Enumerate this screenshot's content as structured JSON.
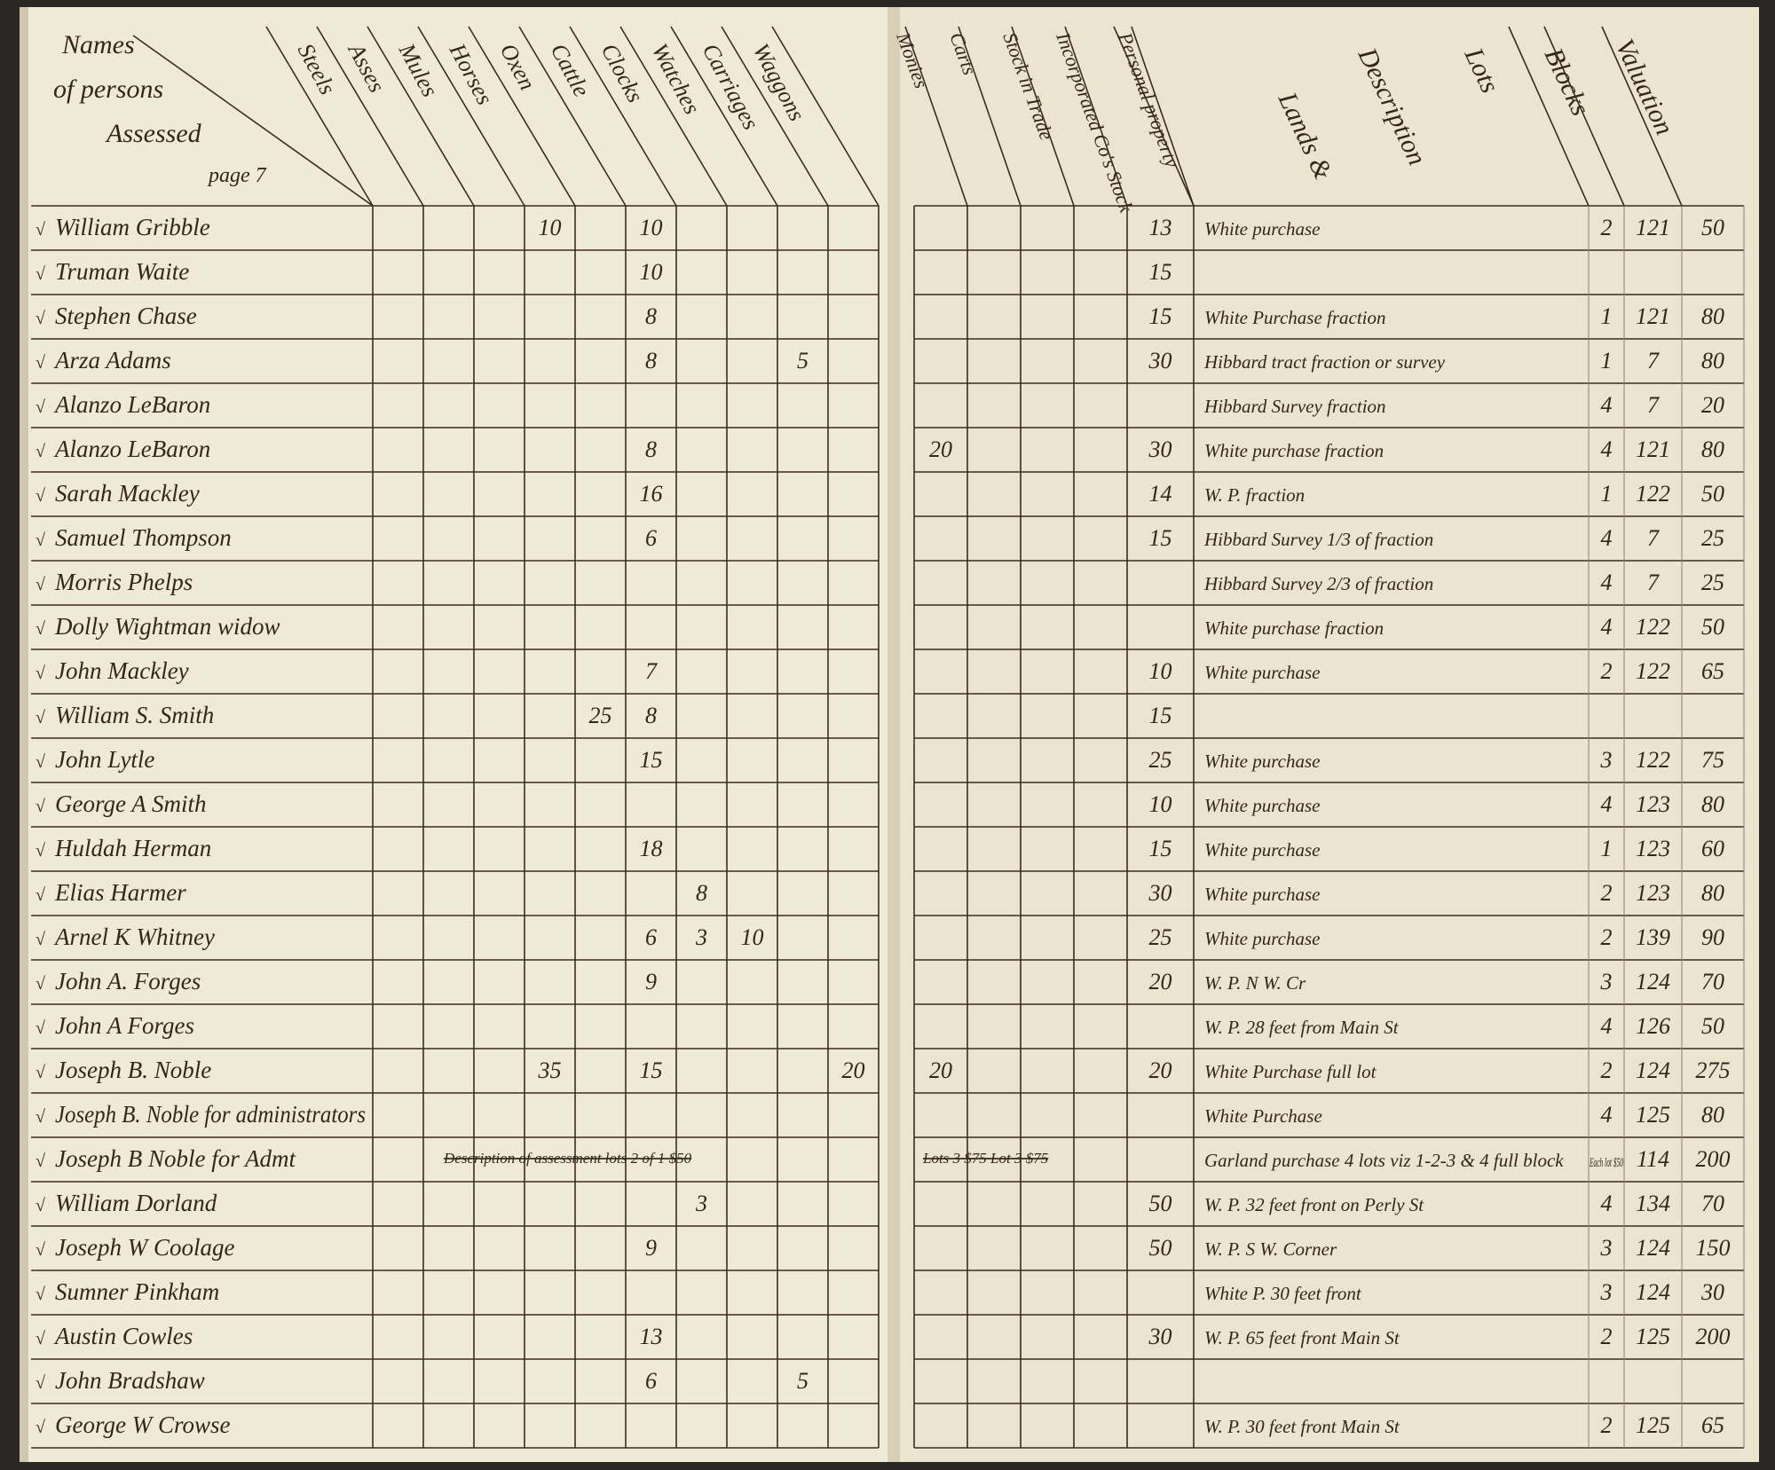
{
  "ledger": {
    "check_mark": "√",
    "names_header": [
      "Names",
      "of persons",
      "Assessed",
      "page 7"
    ],
    "left_columns": [
      "Steels",
      "Asses",
      "Mules",
      "Horses",
      "Oxen",
      "Cattle",
      "Clocks",
      "Watches",
      "Carriages",
      "Waggons"
    ],
    "right_columns": [
      "Monies",
      "Carts",
      "Stock in Trade",
      "Incorporated Co's Stock",
      "Personal property"
    ],
    "land_columns": [
      "Lands &",
      "Description",
      "Lots",
      "Blocks",
      "Valuation"
    ],
    "rows": [
      {
        "name": "William Gribble",
        "left": [
          null,
          null,
          null,
          10,
          null,
          10,
          null,
          null,
          null,
          null
        ],
        "right": [
          null,
          null,
          null,
          null,
          13
        ],
        "description": "White purchase",
        "lot": 2,
        "block": 121,
        "valuation": 50
      },
      {
        "name": "Truman Waite",
        "left": [
          null,
          null,
          null,
          null,
          null,
          10,
          null,
          null,
          null,
          null
        ],
        "right": [
          null,
          null,
          null,
          null,
          15
        ],
        "description": null,
        "lot": null,
        "block": null,
        "valuation": null
      },
      {
        "name": "Stephen Chase",
        "left": [
          null,
          null,
          null,
          null,
          null,
          8,
          null,
          null,
          null,
          null
        ],
        "right": [
          null,
          null,
          null,
          null,
          15
        ],
        "description": "White Purchase fraction",
        "lot": 1,
        "block": 121,
        "valuation": 80
      },
      {
        "name": "Arza Adams",
        "left": [
          null,
          null,
          null,
          null,
          null,
          8,
          null,
          null,
          5,
          null
        ],
        "right": [
          null,
          null,
          null,
          null,
          30
        ],
        "description": "Hibbard tract fraction or survey",
        "lot": 1,
        "block": 7,
        "valuation": 80
      },
      {
        "name": "Alanzo LeBaron",
        "left": [
          null,
          null,
          null,
          null,
          null,
          null,
          null,
          null,
          null,
          null
        ],
        "right": [
          null,
          null,
          null,
          null,
          null
        ],
        "description": "Hibbard Survey fraction",
        "lot": 4,
        "block": 7,
        "valuation": 20
      },
      {
        "name": "Alanzo LeBaron",
        "left": [
          null,
          null,
          null,
          null,
          null,
          8,
          null,
          null,
          null,
          null
        ],
        "right": [
          20,
          null,
          null,
          null,
          30
        ],
        "description": "White purchase fraction",
        "lot": 4,
        "block": 121,
        "valuation": 80
      },
      {
        "name": "Sarah Mackley",
        "left": [
          null,
          null,
          null,
          null,
          null,
          16,
          null,
          null,
          null,
          null
        ],
        "right": [
          null,
          null,
          null,
          null,
          14
        ],
        "description": "W. P. fraction",
        "lot": 1,
        "block": 122,
        "valuation": 50
      },
      {
        "name": "Samuel Thompson",
        "left": [
          null,
          null,
          null,
          null,
          null,
          6,
          null,
          null,
          null,
          null
        ],
        "right": [
          null,
          null,
          null,
          null,
          15
        ],
        "description": "Hibbard Survey 1/3 of fraction",
        "lot": 4,
        "block": 7,
        "valuation": 25
      },
      {
        "name": "Morris Phelps",
        "left": [
          null,
          null,
          null,
          null,
          null,
          null,
          null,
          null,
          null,
          null
        ],
        "right": [
          null,
          null,
          null,
          null,
          null
        ],
        "description": "Hibbard Survey 2/3 of fraction",
        "lot": 4,
        "block": 7,
        "valuation": 25
      },
      {
        "name": "Dolly Wightman widow",
        "left": [
          null,
          null,
          null,
          null,
          null,
          null,
          null,
          null,
          null,
          null
        ],
        "right": [
          null,
          null,
          null,
          null,
          null
        ],
        "description": "White purchase fraction",
        "lot": 4,
        "block": 122,
        "valuation": 50
      },
      {
        "name": "John Mackley",
        "left": [
          null,
          null,
          null,
          null,
          null,
          7,
          null,
          null,
          null,
          null
        ],
        "right": [
          null,
          null,
          null,
          null,
          10
        ],
        "description": "White purchase",
        "lot": 2,
        "block": 122,
        "valuation": 65
      },
      {
        "name": "William S. Smith",
        "left": [
          null,
          null,
          null,
          null,
          25,
          8,
          null,
          null,
          null,
          null
        ],
        "right": [
          null,
          null,
          null,
          null,
          15
        ],
        "description": null,
        "lot": null,
        "block": null,
        "valuation": null
      },
      {
        "name": "John Lytle",
        "left": [
          null,
          null,
          null,
          null,
          null,
          15,
          null,
          null,
          null,
          null
        ],
        "right": [
          null,
          null,
          null,
          null,
          25
        ],
        "description": "White purchase",
        "lot": 3,
        "block": 122,
        "valuation": 75
      },
      {
        "name": "George A Smith",
        "left": [
          null,
          null,
          null,
          null,
          null,
          null,
          null,
          null,
          null,
          null
        ],
        "right": [
          null,
          null,
          null,
          null,
          10
        ],
        "description": "White purchase",
        "lot": 4,
        "block": 123,
        "valuation": 80
      },
      {
        "name": "Huldah Herman",
        "left": [
          null,
          null,
          null,
          null,
          null,
          18,
          null,
          null,
          null,
          null
        ],
        "right": [
          null,
          null,
          null,
          null,
          15
        ],
        "description": "White purchase",
        "lot": 1,
        "block": 123,
        "valuation": 60
      },
      {
        "name": "Elias Harmer",
        "left": [
          null,
          null,
          null,
          null,
          null,
          null,
          8,
          null,
          null,
          null
        ],
        "right": [
          null,
          null,
          null,
          null,
          30
        ],
        "description": "White purchase",
        "lot": 2,
        "block": 123,
        "valuation": 80
      },
      {
        "name": "Arnel K Whitney",
        "left": [
          null,
          null,
          null,
          null,
          null,
          6,
          3,
          10,
          null,
          null
        ],
        "right": [
          null,
          null,
          null,
          null,
          25
        ],
        "description": "White purchase",
        "lot": 2,
        "block": 139,
        "valuation": 90
      },
      {
        "name": "John A. Forges",
        "left": [
          null,
          null,
          null,
          null,
          null,
          9,
          null,
          null,
          null,
          null
        ],
        "right": [
          null,
          null,
          null,
          null,
          20
        ],
        "description": "W. P. N W. Cr",
        "lot": 3,
        "block": 124,
        "valuation": 70
      },
      {
        "name": "John A Forges",
        "left": [
          null,
          null,
          null,
          null,
          null,
          null,
          null,
          null,
          null,
          null
        ],
        "right": [
          null,
          null,
          null,
          null,
          null
        ],
        "description": "W. P. 28 feet from Main St",
        "lot": 4,
        "block": 126,
        "valuation": 50
      },
      {
        "name": "Joseph B. Noble",
        "left": [
          null,
          null,
          null,
          35,
          null,
          15,
          null,
          null,
          null,
          20
        ],
        "right": [
          20,
          null,
          null,
          null,
          20
        ],
        "description": "White Purchase full lot",
        "lot": 2,
        "block": 124,
        "valuation": 275
      },
      {
        "name": "Joseph B. Noble for administrators",
        "left": [
          null,
          null,
          null,
          null,
          null,
          null,
          null,
          null,
          null,
          null
        ],
        "right": [
          null,
          null,
          null,
          null,
          null
        ],
        "description": "White Purchase",
        "lot": 4,
        "block": 125,
        "valuation": 80
      },
      {
        "name": "Joseph B Noble for Admt",
        "left_note": "Description of assessment lots 2 of 1 $50",
        "right_note": "Lots 3 $75 Lot 3 $75",
        "left": [
          null,
          null,
          null,
          null,
          null,
          null,
          null,
          null,
          null,
          null
        ],
        "right": [
          null,
          null,
          null,
          null,
          null
        ],
        "description": "Garland purchase 4 lots viz 1-2-3 & 4 full block",
        "lot": "Each lot $50",
        "block": 114,
        "valuation": 200
      },
      {
        "name": "William Dorland",
        "left": [
          null,
          null,
          null,
          null,
          null,
          null,
          3,
          null,
          null,
          null
        ],
        "right": [
          null,
          null,
          null,
          null,
          50
        ],
        "description": "W. P. 32 feet front on Perly St",
        "lot": 4,
        "block": 134,
        "valuation": 70
      },
      {
        "name": "Joseph W Coolage",
        "left": [
          null,
          null,
          null,
          null,
          null,
          9,
          null,
          null,
          null,
          null
        ],
        "right": [
          null,
          null,
          null,
          null,
          50
        ],
        "description": "W. P. S W. Corner",
        "lot": 3,
        "block": 124,
        "valuation": 150
      },
      {
        "name": "Sumner Pinkham",
        "left": [
          null,
          null,
          null,
          null,
          null,
          null,
          null,
          null,
          null,
          null
        ],
        "right": [
          null,
          null,
          null,
          null,
          null
        ],
        "description": "White P. 30 feet front",
        "lot": 3,
        "block": 124,
        "valuation": 30
      },
      {
        "name": "Austin Cowles",
        "left": [
          null,
          null,
          null,
          null,
          null,
          13,
          null,
          null,
          null,
          null
        ],
        "right": [
          null,
          null,
          null,
          null,
          30
        ],
        "description": "W. P. 65 feet front Main St",
        "lot": 2,
        "block": 125,
        "valuation": 200
      },
      {
        "name": "John Bradshaw",
        "left": [
          null,
          null,
          null,
          null,
          null,
          6,
          null,
          null,
          5,
          null
        ],
        "right": [
          null,
          null,
          null,
          null,
          null
        ],
        "description": null,
        "lot": null,
        "block": null,
        "valuation": null
      },
      {
        "name": "George W Crowse",
        "left": [
          null,
          null,
          null,
          null,
          null,
          null,
          null,
          null,
          null,
          null
        ],
        "right": [
          null,
          null,
          null,
          null,
          null
        ],
        "description": "W. P. 30 feet front Main St",
        "lot": 2,
        "block": 125,
        "valuation": 65
      }
    ]
  }
}
